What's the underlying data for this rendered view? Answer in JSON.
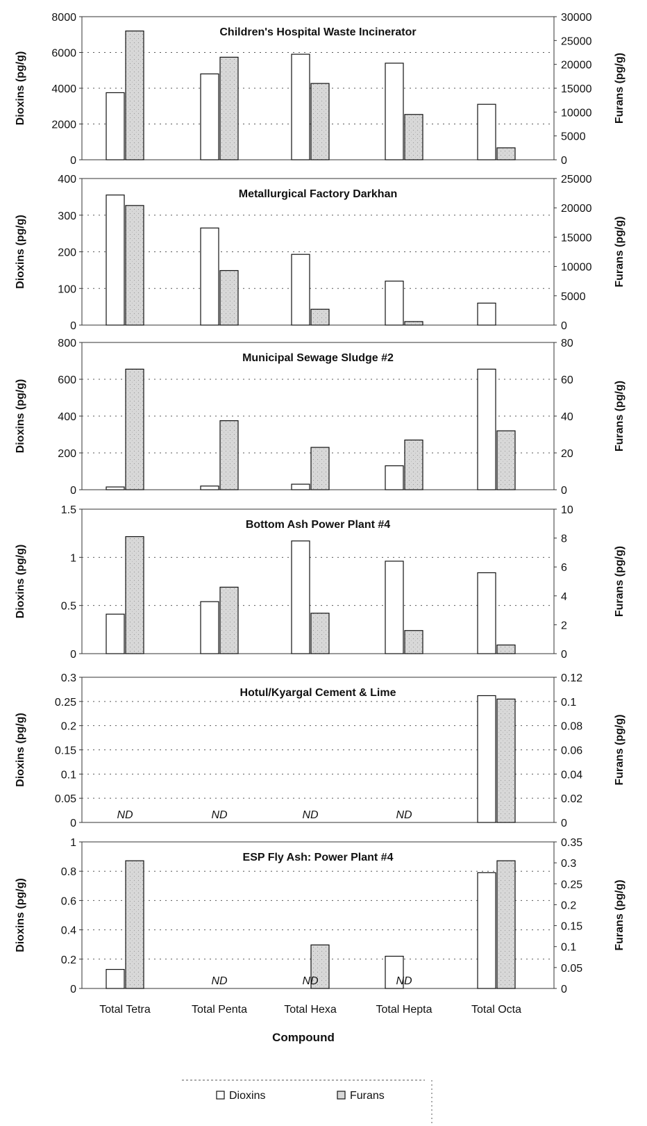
{
  "chart_data": {
    "type": "bar",
    "categories": [
      "Total Tetra",
      "Total Penta",
      "Total Hexa",
      "Total Hepta",
      "Total Octa"
    ],
    "xlabel": "Compound",
    "legend": {
      "position": "bottom",
      "entries": [
        "Dioxins",
        "Furans"
      ]
    },
    "colors": {
      "dioxins": "#ffffff",
      "furans": "#d8d8d8",
      "stroke": "#111111",
      "grid": "#555555"
    },
    "nd_label": "ND",
    "panels": [
      {
        "title": "Children's Hospital Waste Incinerator",
        "ylabel_left": "Dioxins (pg/g)",
        "ylabel_right": "Furans (pg/g)",
        "ylim_left": [
          0,
          8000
        ],
        "ylim_right": [
          0,
          30000
        ],
        "ticks_left": [
          "0",
          "2000",
          "4000",
          "6000",
          "8000"
        ],
        "ticks_right": [
          "0",
          "5000",
          "10000",
          "15000",
          "20000",
          "25000",
          "30000"
        ],
        "series": [
          {
            "name": "Dioxins",
            "axis": "left",
            "values": [
              3750,
              4800,
              5900,
              5400,
              3100
            ]
          },
          {
            "name": "Furans",
            "axis": "right",
            "values": [
              27000,
              21500,
              16000,
              9500,
              2500
            ]
          }
        ]
      },
      {
        "title": "Metallurgical Factory Darkhan",
        "ylabel_left": "Dioxins (pg/g)",
        "ylabel_right": "Furans (pg/g)",
        "ylim_left": [
          0,
          400
        ],
        "ylim_right": [
          0,
          25000
        ],
        "ticks_left": [
          "0",
          "100",
          "200",
          "300",
          "400"
        ],
        "ticks_right": [
          "0",
          "5000",
          "10000",
          "15000",
          "20000",
          "25000"
        ],
        "series": [
          {
            "name": "Dioxins",
            "axis": "left",
            "values": [
              355,
              265,
              193,
              120,
              60
            ]
          },
          {
            "name": "Furans",
            "axis": "right",
            "values": [
              20400,
              9300,
              2700,
              600,
              0
            ]
          }
        ]
      },
      {
        "title": "Municipal Sewage Sludge #2",
        "ylabel_left": "Dioxins (pg/g)",
        "ylabel_right": "Furans (pg/g)",
        "ylim_left": [
          0,
          800
        ],
        "ylim_right": [
          0,
          80
        ],
        "ticks_left": [
          "0",
          "200",
          "400",
          "600",
          "800"
        ],
        "ticks_right": [
          "0",
          "20",
          "40",
          "60",
          "80"
        ],
        "series": [
          {
            "name": "Dioxins",
            "axis": "left",
            "values": [
              15,
              20,
              30,
              130,
              655
            ]
          },
          {
            "name": "Furans",
            "axis": "right",
            "values": [
              65.5,
              37.5,
              23,
              27,
              32
            ]
          }
        ]
      },
      {
        "title": "Bottom Ash Power Plant #4",
        "ylabel_left": "Dioxins (pg/g)",
        "ylabel_right": "Furans (pg/g)",
        "ylim_left": [
          0,
          1.5
        ],
        "ylim_right": [
          0,
          10
        ],
        "ticks_left": [
          "0",
          "0.5",
          "1",
          "1.5"
        ],
        "ticks_right": [
          "0",
          "2",
          "4",
          "6",
          "8",
          "10"
        ],
        "series": [
          {
            "name": "Dioxins",
            "axis": "left",
            "values": [
              0.41,
              0.54,
              1.17,
              0.96,
              0.84
            ]
          },
          {
            "name": "Furans",
            "axis": "right",
            "values": [
              8.1,
              4.6,
              2.8,
              1.6,
              0.6
            ]
          }
        ]
      },
      {
        "title": "Hotul/Kyargal Cement & Lime",
        "ylabel_left": "Dioxins (pg/g)",
        "ylabel_right": "Furans (pg/g)",
        "ylim_left": [
          0,
          0.3
        ],
        "ylim_right": [
          0,
          0.12
        ],
        "ticks_left": [
          "0",
          "0.05",
          "0.1",
          "0.15",
          "0.2",
          "0.25",
          "0.3"
        ],
        "ticks_right": [
          "0",
          "0.02",
          "0.04",
          "0.06",
          "0.08",
          "0.1",
          "0.12"
        ],
        "series": [
          {
            "name": "Dioxins",
            "axis": "left",
            "values": [
              null,
              null,
              null,
              null,
              0.262
            ]
          },
          {
            "name": "Furans",
            "axis": "right",
            "values": [
              null,
              null,
              null,
              null,
              0.102
            ]
          }
        ],
        "nd_categories": [
          0,
          1,
          2,
          3
        ]
      },
      {
        "title": "ESP Fly Ash:  Power Plant #4",
        "ylabel_left": "Dioxins (pg/g)",
        "ylabel_right": "Furans (pg/g)",
        "ylim_left": [
          0,
          1
        ],
        "ylim_right": [
          0,
          0.35
        ],
        "ticks_left": [
          "0",
          "0.2",
          "0.4",
          "0.6",
          "0.8",
          "1"
        ],
        "ticks_right": [
          "0",
          "0.05",
          "0.1",
          "0.15",
          "0.2",
          "0.25",
          "0.3",
          "0.35"
        ],
        "series": [
          {
            "name": "Dioxins",
            "axis": "left",
            "values": [
              0.13,
              null,
              null,
              0.22,
              0.79
            ]
          },
          {
            "name": "Furans",
            "axis": "right",
            "values": [
              0.305,
              null,
              0.104,
              null,
              0.305
            ]
          }
        ],
        "nd_categories": [
          1,
          2,
          3
        ]
      }
    ]
  }
}
